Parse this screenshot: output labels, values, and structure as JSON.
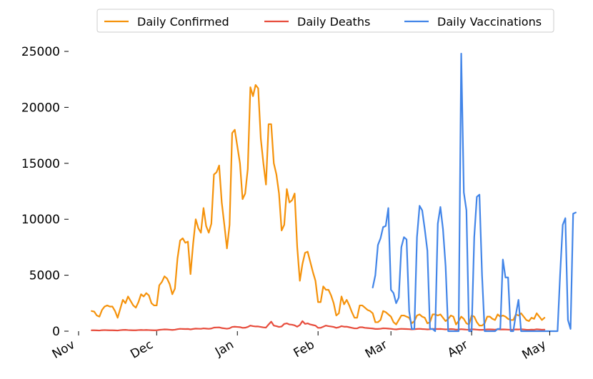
{
  "chart_data": {
    "type": "line",
    "title": "",
    "xlabel": "",
    "ylabel": "",
    "grid": false,
    "legend_position": "top",
    "x_start": "2020-11-01",
    "x_end": "2021-05-05",
    "ylim": [
      0,
      25000
    ],
    "yticks": [
      0,
      5000,
      10000,
      15000,
      20000,
      25000
    ],
    "xticks": [
      {
        "label": "Nov",
        "date": "2020-11-01"
      },
      {
        "label": "Dec",
        "date": "2020-12-01"
      },
      {
        "label": "Jan",
        "date": "2021-01-01"
      },
      {
        "label": "Feb",
        "date": "2021-02-01"
      },
      {
        "label": "Mar",
        "date": "2021-03-01"
      },
      {
        "label": "Apr",
        "date": "2021-04-01"
      },
      {
        "label": "May",
        "date": "2021-05-01"
      }
    ],
    "series": [
      {
        "name": "Daily Confirmed",
        "color": "#f5920a",
        "start_date": "2020-11-06",
        "values": [
          1800,
          1750,
          1400,
          1300,
          1900,
          2200,
          2300,
          2200,
          2200,
          1800,
          1200,
          2000,
          2800,
          2500,
          3100,
          2700,
          2300,
          2100,
          2600,
          3300,
          3100,
          3400,
          3200,
          2500,
          2300,
          2300,
          4100,
          4400,
          4900,
          4700,
          4200,
          3300,
          3800,
          6500,
          8100,
          8300,
          7900,
          8000,
          5100,
          7800,
          10000,
          9200,
          8800,
          11000,
          9400,
          8800,
          9600,
          14000,
          14200,
          14800,
          11500,
          9500,
          7400,
          9500,
          17700,
          18000,
          16500,
          15000,
          11800,
          12300,
          14500,
          21800,
          21000,
          22000,
          21700,
          17200,
          15000,
          13100,
          18500,
          18500,
          15000,
          14000,
          12300,
          9000,
          9500,
          12700,
          11500,
          11700,
          12300,
          7500,
          4500,
          6000,
          7000,
          7100,
          6200,
          5300,
          4500,
          2600,
          2600,
          4000,
          3700,
          3700,
          3200,
          2500,
          1400,
          1600,
          3100,
          2400,
          2800,
          2300,
          1700,
          1200,
          1200,
          2300,
          2300,
          2100,
          1900,
          1800,
          1600,
          800,
          800,
          1000,
          1800,
          1700,
          1500,
          1300,
          800,
          600,
          1000,
          1400,
          1400,
          1300,
          1200,
          700,
          900,
          1400,
          1500,
          1300,
          1200,
          700,
          800,
          1500,
          1500,
          1400,
          1500,
          1200,
          900,
          1100,
          1400,
          1300,
          600,
          900,
          1300,
          1100,
          700,
          600,
          1400,
          1300,
          800,
          500,
          500,
          700,
          1300,
          1300,
          1100,
          1000,
          1500,
          1300,
          1400,
          1300,
          1100,
          1000,
          1000,
          1500,
          1400,
          1600,
          1300,
          1000,
          900,
          1200,
          1100,
          1600,
          1300,
          1000,
          1200
        ]
      },
      {
        "name": "Daily Deaths",
        "color": "#e74c3c",
        "start_date": "2020-11-06",
        "values": [
          80,
          80,
          70,
          60,
          90,
          100,
          90,
          80,
          80,
          70,
          60,
          90,
          110,
          120,
          100,
          90,
          80,
          80,
          100,
          110,
          100,
          110,
          100,
          90,
          80,
          80,
          120,
          140,
          160,
          150,
          130,
          110,
          130,
          180,
          210,
          200,
          190,
          200,
          160,
          200,
          230,
          220,
          210,
          250,
          230,
          210,
          240,
          320,
          330,
          340,
          280,
          250,
          220,
          260,
          380,
          400,
          380,
          360,
          300,
          310,
          380,
          500,
          450,
          420,
          420,
          380,
          340,
          320,
          600,
          850,
          500,
          450,
          380,
          420,
          650,
          700,
          600,
          580,
          520,
          400,
          550,
          900,
          650,
          700,
          600,
          550,
          500,
          300,
          300,
          400,
          500,
          450,
          420,
          380,
          300,
          350,
          450,
          400,
          400,
          350,
          300,
          250,
          250,
          350,
          350,
          300,
          280,
          260,
          240,
          200,
          200,
          220,
          260,
          250,
          230,
          210,
          180,
          160,
          190,
          210,
          200,
          190,
          180,
          160,
          170,
          200,
          210,
          190,
          180,
          160,
          170,
          200,
          200,
          190,
          200,
          180,
          160,
          170,
          190,
          180,
          140,
          150,
          180,
          160,
          140,
          130,
          170,
          160,
          140,
          120,
          120,
          130,
          160,
          160,
          150,
          140,
          170,
          150,
          160,
          150,
          140,
          130,
          130,
          160,
          150,
          170,
          150,
          130,
          120,
          140,
          130,
          170,
          150,
          130,
          140
        ]
      },
      {
        "name": "Daily Vaccinations",
        "color": "#4285e8",
        "start_date": "2021-02-22",
        "values": [
          3900,
          5000,
          7700,
          8300,
          9300,
          9400,
          11000,
          3700,
          3400,
          2500,
          3000,
          7500,
          8400,
          8200,
          1800,
          200,
          200,
          8400,
          11200,
          10800,
          9100,
          7200,
          200,
          200,
          0,
          9600,
          11100,
          9100,
          5800,
          0,
          0,
          0,
          0,
          0,
          24800,
          12400,
          10800,
          0,
          0,
          8400,
          12000,
          12200,
          5000,
          0,
          0,
          0,
          0,
          0,
          200,
          200,
          6400,
          4800,
          4800,
          0,
          0,
          1500,
          2800,
          0,
          0,
          0,
          0,
          0,
          0,
          0,
          0,
          0,
          0,
          0,
          0,
          0,
          0,
          0,
          5100,
          9500,
          10100,
          1000,
          200,
          10500,
          10600
        ]
      }
    ]
  }
}
